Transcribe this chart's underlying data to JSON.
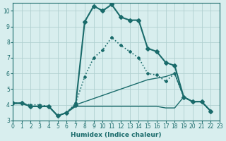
{
  "xlabel": "Humidex (Indice chaleur)",
  "xlim": [
    0,
    23
  ],
  "ylim": [
    3,
    10.5
  ],
  "yticks": [
    3,
    4,
    5,
    6,
    7,
    8,
    9,
    10
  ],
  "xticks": [
    0,
    1,
    2,
    3,
    4,
    5,
    6,
    7,
    8,
    9,
    10,
    11,
    12,
    13,
    14,
    15,
    16,
    17,
    18,
    19,
    20,
    21,
    22,
    23
  ],
  "bg_color": "#d8eeee",
  "line_color": "#1a6b6b",
  "grid_color": "#b0d0d0",
  "curves": [
    {
      "x": [
        0,
        1,
        2,
        3,
        4,
        5,
        6,
        7,
        8,
        9,
        10,
        11,
        12,
        13,
        14,
        15,
        16,
        17,
        18,
        19,
        20,
        21,
        22
      ],
      "y": [
        4.1,
        4.1,
        3.9,
        3.9,
        3.9,
        3.3,
        3.5,
        4.0,
        9.3,
        10.3,
        10.0,
        10.4,
        9.6,
        9.4,
        9.4,
        7.6,
        7.4,
        6.7,
        6.5,
        4.5,
        4.2,
        4.2,
        3.6
      ],
      "style": "-",
      "marker": "D",
      "markersize": 3,
      "linewidth": 1.5
    },
    {
      "x": [
        0,
        1,
        2,
        3,
        4,
        5,
        6,
        7,
        8,
        9,
        10,
        11,
        12,
        13,
        14,
        15,
        16,
        17,
        18,
        19,
        20,
        21,
        22
      ],
      "y": [
        4.1,
        4.1,
        3.9,
        3.9,
        3.9,
        3.3,
        3.5,
        4.0,
        4.2,
        4.4,
        4.6,
        4.8,
        5.0,
        5.2,
        5.4,
        5.6,
        5.7,
        5.8,
        6.0,
        4.5,
        4.2,
        4.2,
        3.6
      ],
      "style": "-",
      "marker": "none",
      "markersize": 0,
      "linewidth": 1.0
    },
    {
      "x": [
        0,
        1,
        2,
        3,
        4,
        5,
        6,
        7,
        8,
        9,
        10,
        11,
        12,
        13,
        14,
        15,
        16,
        17,
        18,
        19,
        20,
        21,
        22
      ],
      "y": [
        4.1,
        4.1,
        3.9,
        3.9,
        3.9,
        3.3,
        3.5,
        3.9,
        3.9,
        3.9,
        3.9,
        3.9,
        3.9,
        3.9,
        3.9,
        3.9,
        3.9,
        3.8,
        3.8,
        4.5,
        4.2,
        4.2,
        3.6
      ],
      "style": "-",
      "marker": "none",
      "markersize": 0,
      "linewidth": 1.0
    },
    {
      "x": [
        0,
        1,
        2,
        3,
        4,
        5,
        6,
        7,
        8,
        9,
        10,
        11,
        12,
        13,
        14,
        15,
        16,
        17,
        18,
        19,
        20,
        21,
        22
      ],
      "y": [
        4.1,
        4.1,
        4.0,
        4.0,
        3.9,
        3.3,
        3.5,
        4.1,
        5.8,
        7.0,
        7.5,
        8.3,
        7.8,
        7.4,
        7.0,
        6.0,
        5.9,
        5.5,
        6.0,
        4.5,
        4.2,
        4.2,
        3.6
      ],
      "style": ":",
      "marker": "D",
      "markersize": 2,
      "linewidth": 1.2
    }
  ]
}
